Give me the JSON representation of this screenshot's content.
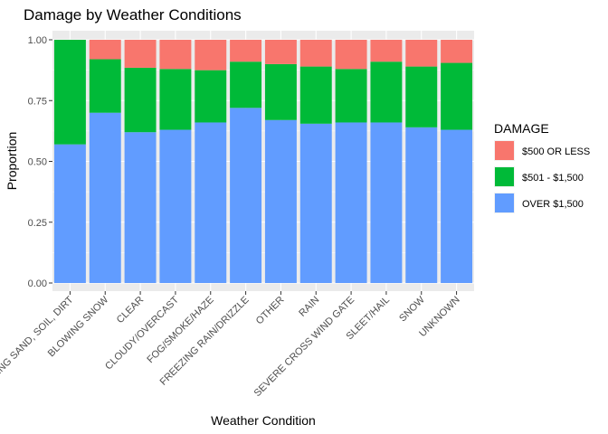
{
  "chart_data": {
    "type": "bar",
    "stacked": true,
    "title": "Damage by Weather Conditions",
    "xlabel": "Weather Condition",
    "ylabel": "Proportion",
    "ylim": [
      0,
      1
    ],
    "yticks": [
      "0.00",
      "0.25",
      "0.50",
      "0.75",
      "1.00"
    ],
    "grid": true,
    "legend_position": "right",
    "legend_title": "DAMAGE",
    "categories": [
      "BLOWING SAND, SOIL, DIRT",
      "BLOWING SNOW",
      "CLEAR",
      "CLOUDY/OVERCAST",
      "FOG/SMOKE/HAZE",
      "FREEZING RAIN/DRIZZLE",
      "OTHER",
      "RAIN",
      "SEVERE CROSS WIND GATE",
      "SLEET/HAIL",
      "SNOW",
      "UNKNOWN"
    ],
    "series": [
      {
        "name": "OVER $1,500",
        "color": "#619cff",
        "values": [
          0.57,
          0.7,
          0.62,
          0.63,
          0.66,
          0.72,
          0.67,
          0.655,
          0.66,
          0.66,
          0.64,
          0.63
        ]
      },
      {
        "name": "$501 - $1,500",
        "color": "#00ba38",
        "values": [
          0.43,
          0.22,
          0.265,
          0.25,
          0.215,
          0.19,
          0.23,
          0.235,
          0.22,
          0.25,
          0.25,
          0.275
        ]
      },
      {
        "name": "$500 OR LESS",
        "color": "#f8766d",
        "values": [
          0.0,
          0.08,
          0.115,
          0.12,
          0.125,
          0.09,
          0.1,
          0.11,
          0.12,
          0.09,
          0.11,
          0.095
        ]
      }
    ],
    "legend_order": [
      "$500 OR LESS",
      "$501 - $1,500",
      "OVER $1,500"
    ]
  },
  "colors": {
    "panel_background": "#ebebeb",
    "grid_major": "#ffffff",
    "tick_text": "#4d4d4d"
  }
}
